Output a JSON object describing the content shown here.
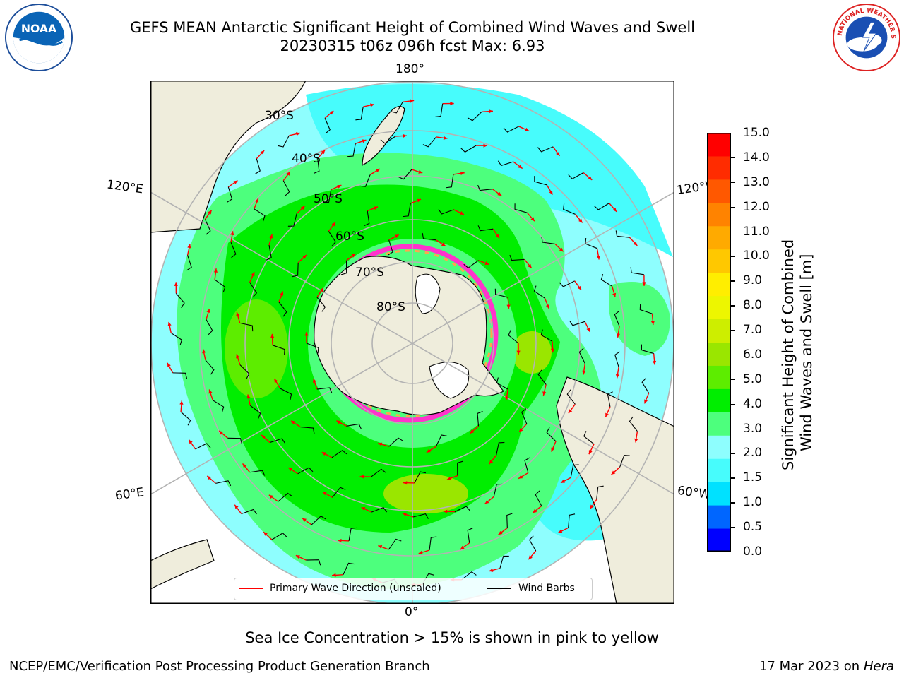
{
  "header": {
    "title_line1": "GEFS MEAN Antarctic Significant Height of Combined Wind Waves and Swell",
    "title_line2": "20230315 t06z 096h fcst   Max: 6.93"
  },
  "logos": {
    "left": "noaa-logo",
    "left_text": "NOAA",
    "right": "nws-logo",
    "right_text": "NATIONAL WEATHER SERVICE"
  },
  "map": {
    "projection": "south-polar-stereographic",
    "longitude_labels": [
      "180°",
      "0°",
      "120°E",
      "60°E",
      "120°W",
      "60°W"
    ],
    "latitude_labels": [
      "30°S",
      "40°S",
      "50°S",
      "60°S",
      "70°S",
      "80°S"
    ],
    "colors": {
      "land": "#efeddc",
      "ocean_low": "#8ffeff",
      "grid": "#b3b3b3"
    }
  },
  "colorbar": {
    "title_line1": "Significant Height of Combined",
    "title_line2": "Wind Waves and Swell [m]",
    "ticks": [
      "15.0",
      "14.0",
      "13.0",
      "12.0",
      "11.0",
      "10.0",
      "9.0",
      "8.0",
      "7.0",
      "6.0",
      "5.0",
      "4.0",
      "3.0",
      "2.0",
      "1.5",
      "1.0",
      "0.5",
      "0.0"
    ],
    "colors": [
      "#0000ff",
      "#0066ff",
      "#00e1ff",
      "#47fcfc",
      "#8efefe",
      "#4dff7d",
      "#00ee00",
      "#5ded00",
      "#9ae600",
      "#cdee00",
      "#edf600",
      "#ffee00",
      "#ffc800",
      "#ffaa00",
      "#ff8300",
      "#ff5800",
      "#ff2c00",
      "#ff0000"
    ]
  },
  "legend": {
    "primary_label": "Primary Wave Direction (unscaled)",
    "primary_color": "#ff0000",
    "wind_label": "Wind Barbs",
    "wind_color": "#000000"
  },
  "footer": {
    "note": "Sea Ice Concentration > 15% is shown in pink to yellow",
    "credit": "NCEP/EMC/Verification Post Processing Product Generation Branch",
    "date": "17 Mar 2023 on",
    "host": "Hera"
  }
}
